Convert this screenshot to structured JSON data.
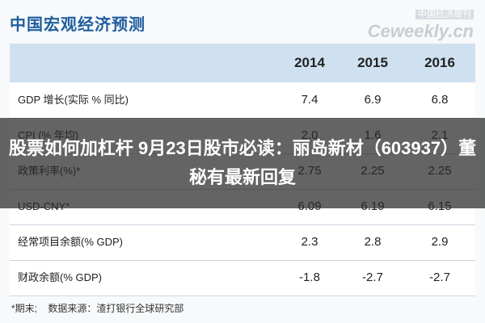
{
  "header": {
    "title": "中国宏观经济预测",
    "logo_cn": "中国经济周刊",
    "logo_en": "Ceweekly.cn"
  },
  "table": {
    "columns": [
      "2014",
      "2015",
      "2016"
    ],
    "rows": [
      [
        "GDP 增长(实际 % 同比)",
        "7.4",
        "6.9",
        "6.8"
      ],
      [
        "CPI (% 年均)",
        "2.0",
        "1.6",
        "2.1"
      ],
      [
        "政策利率(%)*",
        "2.75",
        "2.25",
        "2.25"
      ],
      [
        "USD-CNY*",
        "6.09",
        "6.19",
        "6.15"
      ],
      [
        "经常项目余额(% GDP)",
        "2.3",
        "2.8",
        "2.9"
      ],
      [
        "财政余额(% GDP)",
        "-1.8",
        "-2.7",
        "-2.7"
      ]
    ]
  },
  "footnote": "*期末;    数据来源：渣打银行全球研究部",
  "banner": "股票如何加杠杆 9月23日股市必读：丽岛新材（603937）董秘有最新回复"
}
